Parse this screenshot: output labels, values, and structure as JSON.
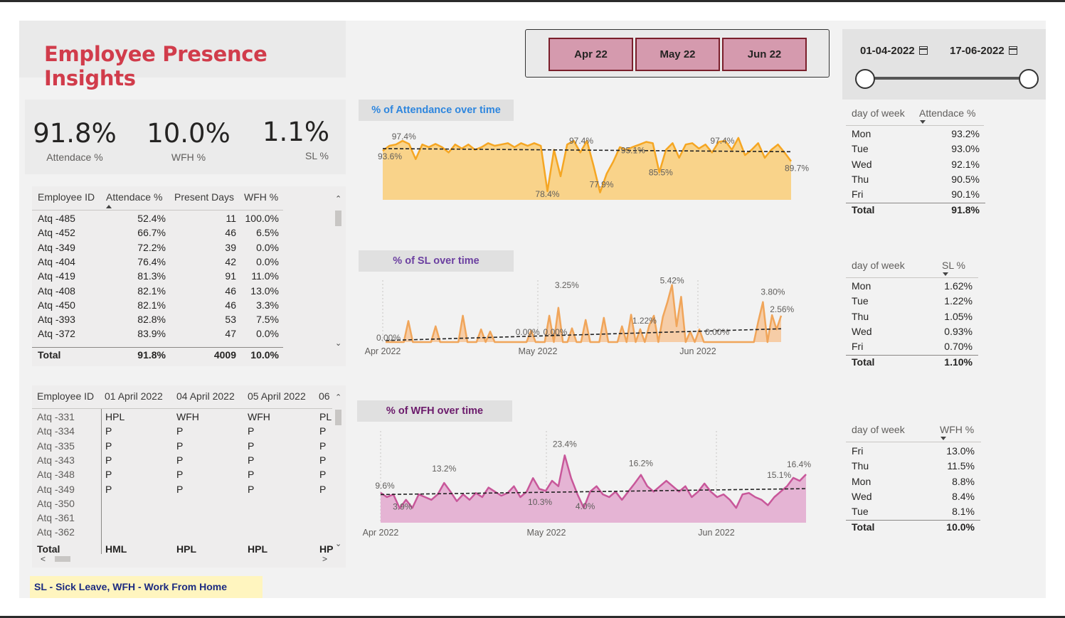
{
  "title": "Employee Presence Insights",
  "kpis": [
    {
      "value": "91.8%",
      "label": "Attendace %"
    },
    {
      "value": "10.0%",
      "label": "WFH %"
    },
    {
      "value": "1.1%",
      "label": "SL %"
    }
  ],
  "month_slicer": [
    "Apr 22",
    "May 22",
    "Jun 22"
  ],
  "date_range": {
    "start": "01-04-2022",
    "end": "17-06-2022"
  },
  "employee_table": {
    "headers": [
      "Employee ID",
      "Attendace %",
      "Present Days",
      "WFH %"
    ],
    "rows": [
      [
        "Atq -485",
        "52.4%",
        "11",
        "100.0%"
      ],
      [
        "Atq -452",
        "66.7%",
        "46",
        "6.5%"
      ],
      [
        "Atq -349",
        "72.2%",
        "39",
        "0.0%"
      ],
      [
        "Atq -404",
        "76.4%",
        "42",
        "0.0%"
      ],
      [
        "Atq -419",
        "81.3%",
        "91",
        "11.0%"
      ],
      [
        "Atq -408",
        "82.1%",
        "46",
        "13.0%"
      ],
      [
        "Atq -450",
        "82.1%",
        "46",
        "3.3%"
      ],
      [
        "Atq -393",
        "82.8%",
        "53",
        "7.5%"
      ],
      [
        "Atq -372",
        "83.9%",
        "47",
        "0.0%"
      ]
    ],
    "total": [
      "Total",
      "91.8%",
      "4009",
      "10.0%"
    ]
  },
  "matrix_table": {
    "headers": [
      "Employee ID",
      "01 April 2022",
      "04 April 2022",
      "05 April 2022",
      "06"
    ],
    "rows": [
      [
        "Atq -331",
        "HPL",
        "WFH",
        "WFH",
        "PL"
      ],
      [
        "Atq -334",
        "P",
        "P",
        "P",
        "P"
      ],
      [
        "Atq -335",
        "P",
        "P",
        "P",
        "P"
      ],
      [
        "Atq -343",
        "P",
        "P",
        "P",
        "P"
      ],
      [
        "Atq -348",
        "P",
        "P",
        "P",
        "P"
      ],
      [
        "Atq -349",
        "P",
        "P",
        "P",
        "P"
      ],
      [
        "Atq -350",
        "",
        "",
        "",
        ""
      ],
      [
        "Atq -361",
        "",
        "",
        "",
        ""
      ],
      [
        "Atq -362",
        "",
        "",
        "",
        ""
      ]
    ],
    "total": [
      "Total",
      "HML",
      "HPL",
      "HPL",
      "HP"
    ]
  },
  "attendance_by_day": {
    "headers": [
      "day of week",
      "Attendace %"
    ],
    "rows": [
      [
        "Mon",
        "93.2%"
      ],
      [
        "Tue",
        "93.0%"
      ],
      [
        "Wed",
        "92.1%"
      ],
      [
        "Thu",
        "90.5%"
      ],
      [
        "Fri",
        "90.1%"
      ]
    ],
    "total": [
      "Total",
      "91.8%"
    ]
  },
  "sl_by_day": {
    "headers": [
      "day of week",
      "SL %"
    ],
    "rows": [
      [
        "Mon",
        "1.62%"
      ],
      [
        "Tue",
        "1.22%"
      ],
      [
        "Thu",
        "1.05%"
      ],
      [
        "Wed",
        "0.93%"
      ],
      [
        "Fri",
        "0.70%"
      ]
    ],
    "total": [
      "Total",
      "1.10%"
    ]
  },
  "wfh_by_day": {
    "headers": [
      "day of week",
      "WFH %"
    ],
    "rows": [
      [
        "Fri",
        "13.0%"
      ],
      [
        "Thu",
        "11.5%"
      ],
      [
        "Mon",
        "8.8%"
      ],
      [
        "Wed",
        "8.4%"
      ],
      [
        "Tue",
        "8.1%"
      ]
    ],
    "total": [
      "Total",
      "10.0%"
    ]
  },
  "legend_note": "SL - Sick Leave, WFH - Work From Home",
  "colors": {
    "title": "#d13c4b",
    "attendance": "#f5a623",
    "sl": "#f0a55a",
    "wfh": "#c8579a",
    "slicer": "#d59aae"
  },
  "chart_data": [
    {
      "type": "area",
      "title": "% of Attendance over time",
      "unit": "%",
      "y": [
        93.6,
        95.5,
        96.0,
        97.4,
        96.2,
        90.5,
        96.0,
        95.0,
        96.2,
        95.0,
        93.0,
        96.0,
        94.5,
        96.0,
        94.0,
        95.0,
        96.5,
        95.5,
        96.0,
        96.5,
        95.0,
        96.5,
        95.5,
        96.5,
        95.5,
        78.4,
        94.0,
        84.0,
        96.0,
        97.4,
        93.0,
        97.4,
        88.0,
        77.9,
        85.0,
        89.5,
        95.0,
        94.0,
        95.1,
        96.0,
        97.0,
        96.5,
        85.5,
        94.0,
        96.5,
        91.0,
        96.0,
        96.5,
        94.5,
        96.0,
        93.0,
        97.0,
        97.4,
        94.0,
        98.5,
        92.0,
        94.0,
        96.5,
        91.0,
        94.0,
        96.0,
        93.0,
        89.7
      ],
      "point_labels": [
        [
          "0",
          "93.6%"
        ],
        [
          "3",
          "97.4%"
        ],
        [
          "25",
          "78.4%"
        ],
        [
          "31",
          "97.4%"
        ],
        [
          "33",
          "77.9%"
        ],
        [
          "38",
          "95.1%"
        ],
        [
          "42",
          "85.5%"
        ],
        [
          "52",
          "97.4%"
        ],
        [
          "62",
          "89.7%"
        ]
      ],
      "trendline": true,
      "color": "#f5a623"
    },
    {
      "type": "area",
      "title": "% of SL over time",
      "unit": "%",
      "x_ticks": [
        "Apr 2022",
        "May 2022",
        "Jun 2022"
      ],
      "y": [
        0.0,
        0.0,
        0.0,
        0.0,
        0.0,
        2.0,
        0.0,
        0.0,
        0.0,
        0.0,
        0.0,
        1.5,
        0.0,
        0.0,
        0.0,
        0.0,
        0.0,
        2.5,
        0.0,
        0.0,
        0.0,
        1.2,
        0.0,
        1.0,
        0.0,
        0.0,
        0.0,
        0.0,
        0.0,
        0.0,
        0.0,
        0.0,
        1.1,
        0.0,
        0.0,
        0.0,
        2.5,
        0.0,
        3.25,
        0.0,
        0.0,
        1.3,
        0.0,
        0.0,
        2.1,
        0.0,
        0.0,
        0.0,
        2.3,
        0.0,
        0.0,
        0.0,
        1.5,
        0.0,
        2.6,
        0.0,
        1.22,
        0.0,
        1.6,
        2.5,
        0.0,
        2.4,
        3.8,
        5.42,
        1.5,
        4.3,
        0.0,
        1.0,
        0.0,
        1.2,
        0.0,
        0.0,
        0.0,
        0.0,
        0.0,
        0.0,
        0.0,
        0.0,
        0.0,
        0.0,
        0.0,
        0.0,
        2.0,
        3.8,
        0.0,
        2.56,
        1.2,
        2.5
      ],
      "point_labels": [
        [
          "0",
          "0.00%"
        ],
        [
          "30",
          "0.00%"
        ],
        [
          "37",
          "0.00%"
        ],
        [
          "38",
          "3.25%"
        ],
        [
          "56",
          "1.22%"
        ],
        [
          "63",
          "5.42%"
        ],
        [
          "72",
          "0.00%"
        ],
        [
          "83",
          "3.80%"
        ],
        [
          "85",
          "2.56%"
        ]
      ],
      "trendline": true,
      "color": "#f0a55a"
    },
    {
      "type": "area",
      "title": "% of WFH over time",
      "unit": "%",
      "x_ticks": [
        "Apr 2022",
        "May 2022",
        "Jun 2022"
      ],
      "y": [
        9.6,
        8.0,
        9.0,
        3.9,
        7.0,
        4.0,
        9.0,
        8.0,
        7.0,
        9.0,
        13.2,
        10.0,
        6.5,
        9.0,
        7.0,
        9.5,
        8.0,
        11.5,
        10.0,
        8.5,
        9.5,
        12.0,
        8.0,
        10.0,
        15.0,
        11.0,
        10.3,
        14.0,
        12.0,
        23.4,
        15.0,
        9.0,
        4.0,
        10.0,
        12.0,
        9.0,
        8.0,
        10.0,
        7.0,
        10.0,
        13.0,
        16.2,
        12.0,
        10.0,
        12.0,
        14.0,
        12.0,
        10.0,
        12.0,
        8.0,
        10.0,
        13.0,
        10.0,
        8.0,
        9.0,
        7.0,
        4.0,
        9.0,
        9.5,
        8.0,
        7.0,
        5.0,
        8.0,
        10.0,
        12.0,
        15.1,
        14.0,
        16.4
      ],
      "point_labels": [
        [
          "0",
          "9.6%"
        ],
        [
          "3",
          "3.9%"
        ],
        [
          "10",
          "13.2%"
        ],
        [
          "26",
          "10.3%"
        ],
        [
          "29",
          "23.4%"
        ],
        [
          "32",
          "4.0%"
        ],
        [
          "41",
          "16.2%"
        ],
        [
          "65",
          "15.1%"
        ],
        [
          "67",
          "16.4%"
        ]
      ],
      "trendline": true,
      "color": "#c8579a"
    }
  ]
}
